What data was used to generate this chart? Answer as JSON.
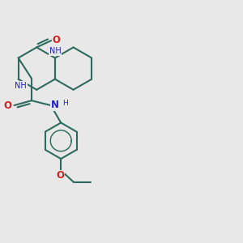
{
  "background_color": "#e8e8e8",
  "bond_color": "#2d6b5e",
  "N_color": "#2020cc",
  "O_color": "#cc2020",
  "lw": 1.5,
  "fig_size": [
    3.0,
    3.0
  ],
  "dpi": 100,
  "xlim": [
    0,
    10
  ],
  "ylim": [
    0,
    10
  ]
}
